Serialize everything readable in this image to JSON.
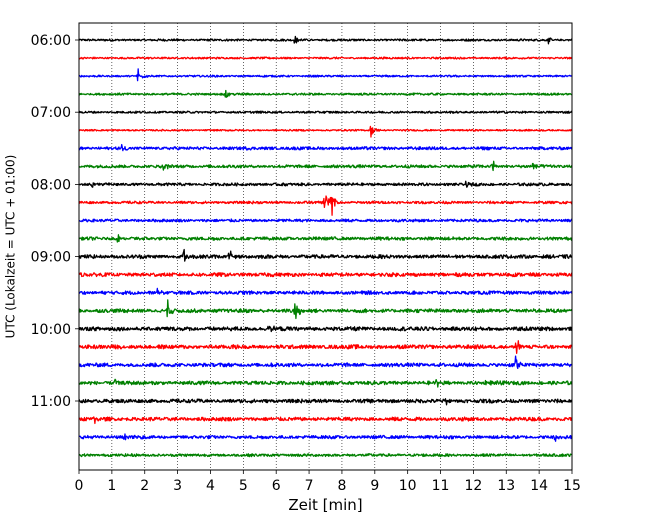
{
  "chart_data": {
    "type": "line",
    "title": "",
    "xlabel": "Zeit  [min]",
    "ylabel": "UTC (Lokalzeit = UTC + 01:00)",
    "xlim": [
      0,
      15
    ],
    "x_ticks": [
      "0",
      "1",
      "2",
      "3",
      "4",
      "5",
      "6",
      "7",
      "8",
      "9",
      "10",
      "11",
      "12",
      "13",
      "14",
      "15"
    ],
    "y_tick_labels": [
      "06:00",
      "07:00",
      "08:00",
      "09:00",
      "10:00",
      "11:00"
    ],
    "grid": "vertical dotted",
    "trace_colors": [
      "#000000",
      "#ff0000",
      "#0000ff",
      "#008000"
    ],
    "traces": [
      {
        "start": "06:00",
        "amplitude": 0.9,
        "events": [
          {
            "t": 6.6,
            "a": 2.5
          },
          {
            "t": 14.3,
            "a": 2.0
          }
        ]
      },
      {
        "start": "06:15",
        "amplitude": 0.8,
        "events": []
      },
      {
        "start": "06:30",
        "amplitude": 0.8,
        "events": [
          {
            "t": 1.8,
            "a": 5.5
          }
        ]
      },
      {
        "start": "06:45",
        "amplitude": 0.9,
        "events": [
          {
            "t": 4.5,
            "a": 3.0
          }
        ]
      },
      {
        "start": "07:00",
        "amplitude": 0.9,
        "events": []
      },
      {
        "start": "07:15",
        "amplitude": 0.7,
        "events": [
          {
            "t": 8.9,
            "a": 5.0
          }
        ]
      },
      {
        "start": "07:30",
        "amplitude": 1.3,
        "events": [
          {
            "t": 1.3,
            "a": 3.0
          }
        ]
      },
      {
        "start": "07:45",
        "amplitude": 1.3,
        "events": [
          {
            "t": 2.6,
            "a": 3.0
          },
          {
            "t": 12.6,
            "a": 3.5
          },
          {
            "t": 13.8,
            "a": 3.0
          }
        ]
      },
      {
        "start": "08:00",
        "amplitude": 1.2,
        "events": [
          {
            "t": 0.4,
            "a": 2.5
          },
          {
            "t": 11.8,
            "a": 2.0
          }
        ]
      },
      {
        "start": "08:15",
        "amplitude": 1.1,
        "events": [
          {
            "t": 7.5,
            "a": 7.0
          },
          {
            "t": 7.7,
            "a": 9.0
          }
        ]
      },
      {
        "start": "08:30",
        "amplitude": 1.2,
        "events": []
      },
      {
        "start": "08:45",
        "amplitude": 1.4,
        "events": [
          {
            "t": 1.2,
            "a": 3.0
          }
        ]
      },
      {
        "start": "09:00",
        "amplitude": 1.6,
        "events": [
          {
            "t": 3.2,
            "a": 5.0
          },
          {
            "t": 4.6,
            "a": 3.5
          }
        ]
      },
      {
        "start": "09:15",
        "amplitude": 1.6,
        "events": []
      },
      {
        "start": "09:30",
        "amplitude": 1.5,
        "events": [
          {
            "t": 2.4,
            "a": 3.0
          }
        ]
      },
      {
        "start": "09:45",
        "amplitude": 1.6,
        "events": [
          {
            "t": 2.7,
            "a": 6.0
          },
          {
            "t": 6.6,
            "a": 8.0
          }
        ]
      },
      {
        "start": "10:00",
        "amplitude": 1.7,
        "events": [
          {
            "t": 5.8,
            "a": 3.5
          }
        ]
      },
      {
        "start": "10:15",
        "amplitude": 1.7,
        "events": [
          {
            "t": 13.3,
            "a": 9.0
          }
        ]
      },
      {
        "start": "10:30",
        "amplitude": 1.6,
        "events": [
          {
            "t": 13.3,
            "a": 6.0
          }
        ]
      },
      {
        "start": "10:45",
        "amplitude": 1.6,
        "events": [
          {
            "t": 1.1,
            "a": 3.0
          },
          {
            "t": 10.9,
            "a": 3.0
          },
          {
            "t": 12.4,
            "a": 2.5
          }
        ]
      },
      {
        "start": "11:00",
        "amplitude": 1.6,
        "events": [
          {
            "t": 11.2,
            "a": 3.0
          }
        ]
      },
      {
        "start": "11:15",
        "amplitude": 1.6,
        "events": [
          {
            "t": 0.5,
            "a": 3.0
          }
        ]
      },
      {
        "start": "11:30",
        "amplitude": 1.4,
        "events": [
          {
            "t": 1.4,
            "a": 3.0
          },
          {
            "t": 14.5,
            "a": 3.0
          }
        ]
      },
      {
        "start": "11:45",
        "amplitude": 1.2,
        "events": []
      }
    ]
  }
}
